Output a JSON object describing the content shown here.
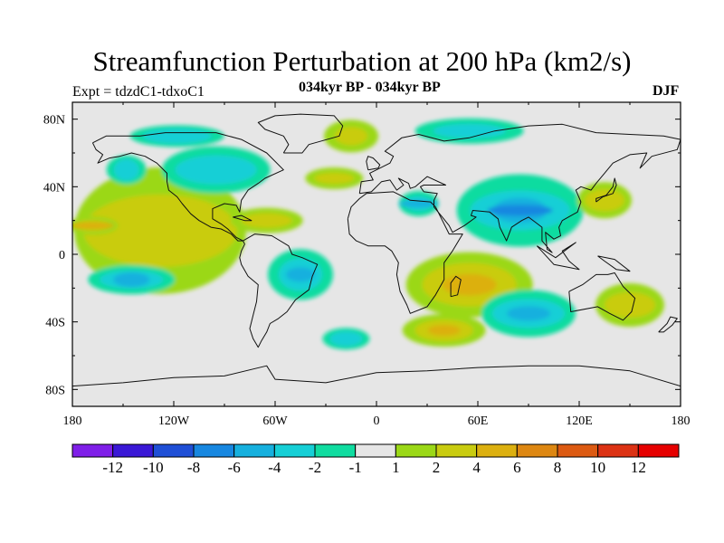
{
  "chart_data": {
    "type": "heatmap",
    "title": "Streamfunction Perturbation at 200 hPa (km2/s)",
    "experiment": "Expt = tdzdC1-tdxoC1",
    "subtitle": "034kyr BP - 034kyr BP",
    "season": "DJF",
    "x_axis": {
      "range": [
        -180,
        180
      ],
      "ticks": [
        -180,
        -120,
        -60,
        0,
        60,
        120,
        180
      ],
      "tick_labels": [
        "180",
        "120W",
        "60W",
        "0",
        "60E",
        "120E",
        "180"
      ]
    },
    "y_axis": {
      "range": [
        -90,
        90
      ],
      "ticks": [
        80,
        40,
        0,
        -40,
        -80
      ],
      "tick_labels": [
        "80N",
        "40N",
        "0",
        "40S",
        "80S"
      ]
    },
    "colorbar": {
      "labels": [
        "-12",
        "-10",
        "-8",
        "-6",
        "-4",
        "-2",
        "-1",
        "1",
        "2",
        "4",
        "6",
        "8",
        "10",
        "12"
      ],
      "levels": [
        -12,
        -10,
        -8,
        -6,
        -4,
        -2,
        -1,
        1,
        2,
        4,
        6,
        8,
        10,
        12
      ],
      "colors": [
        "#7f1fe8",
        "#3a18d6",
        "#1f4fd6",
        "#1787e0",
        "#16b0de",
        "#16cfd6",
        "#10dca0",
        "#e6e6e6",
        "#9bd817",
        "#c9cc10",
        "#dcb010",
        "#dd8712",
        "#dc5a12",
        "#dc3214",
        "#e60000"
      ]
    },
    "regions": [
      {
        "name": "north-pacific-high",
        "lon": -128,
        "lat": 14,
        "value": 2
      },
      {
        "name": "tropical-pacific-east",
        "lon": -168,
        "lat": 17,
        "value": 4
      },
      {
        "name": "arctic-canada-low",
        "lon": -118,
        "lat": 70,
        "value": -2
      },
      {
        "name": "alaska-low",
        "lon": -148,
        "lat": 50,
        "value": -2
      },
      {
        "name": "north-america-low",
        "lon": -95,
        "lat": 50,
        "value": -2
      },
      {
        "name": "north-atlantic-ridge",
        "lon": -25,
        "lat": 45,
        "value": 2
      },
      {
        "name": "greenland-high",
        "lon": -15,
        "lat": 70,
        "value": 2
      },
      {
        "name": "caribbean-high",
        "lon": -65,
        "lat": 20,
        "value": 2
      },
      {
        "name": "eurasia-arctic-low",
        "lon": 55,
        "lat": 73,
        "value": -2
      },
      {
        "name": "mideast-south-asia-low",
        "lon": 85,
        "lat": 26,
        "value": -6
      },
      {
        "name": "north-africa-low",
        "lon": 25,
        "lat": 30,
        "value": -4
      },
      {
        "name": "east-asia-high",
        "lon": 135,
        "lat": 32,
        "value": 2
      },
      {
        "name": "south-pacific-low",
        "lon": -145,
        "lat": -15,
        "value": -4
      },
      {
        "name": "south-america-low",
        "lon": -45,
        "lat": -12,
        "value": -4
      },
      {
        "name": "south-atlantic-low",
        "lon": -18,
        "lat": -50,
        "value": -2
      },
      {
        "name": "africa-indian-high",
        "lon": 55,
        "lat": -18,
        "value": 4
      },
      {
        "name": "south-indian-high",
        "lon": 40,
        "lat": -45,
        "value": 4
      },
      {
        "name": "indian-ocean-low",
        "lon": 90,
        "lat": -35,
        "value": -4
      },
      {
        "name": "australia-high",
        "lon": 150,
        "lat": -30,
        "value": 2
      }
    ]
  }
}
